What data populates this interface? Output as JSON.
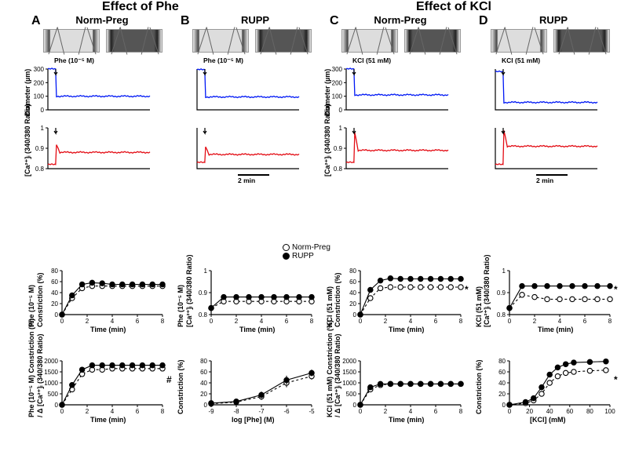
{
  "sections": {
    "left": "Effect of Phe",
    "right": "Effect of KCl"
  },
  "panels": {
    "A": "Norm-Preg",
    "B": "RUPP",
    "C": "Norm-Preg",
    "D": "RUPP"
  },
  "legend": {
    "open": "Norm-Preg",
    "filled": "RUPP"
  },
  "treatments": {
    "phe": "Phe (10⁻⁵ M)",
    "kcl": "KCl (51 mM)"
  },
  "scalebar": "2 min",
  "diameter": {
    "axis": {
      "ylabel": "Diameter (µm)",
      "ymin": 0,
      "ymax": 300,
      "ticks": [
        0,
        100,
        200,
        300
      ]
    },
    "traces": {
      "A": {
        "color": "#0018f5",
        "baseline": 300,
        "plateau": 100
      },
      "B": {
        "color": "#0018f5",
        "baseline": 295,
        "plateau": 95
      },
      "C": {
        "color": "#0018f5",
        "baseline": 300,
        "plateau": 110
      },
      "D": {
        "color": "#0018f5",
        "baseline": 280,
        "plateau": 55
      }
    }
  },
  "calcium_trace": {
    "axis": {
      "ylabel": "[Ca²⁺]ᵢ (340/380 Ratio)",
      "ymin": 0.8,
      "ymax": 1.0,
      "ticks": [
        0.8,
        0.9,
        1.0
      ]
    },
    "traces": {
      "A": {
        "color": "#e30b13",
        "baseline": 0.82,
        "plateau": 0.88,
        "peak": 0.92
      },
      "B": {
        "color": "#e30b13",
        "baseline": 0.83,
        "plateau": 0.87,
        "peak": 0.91
      },
      "C": {
        "color": "#e30b13",
        "baseline": 0.83,
        "plateau": 0.89,
        "peak": 0.98
      },
      "D": {
        "color": "#e30b13",
        "baseline": 0.82,
        "plateau": 0.91,
        "peak": 0.99
      }
    }
  },
  "timecourse": {
    "xaxis": {
      "label": "Time (min)",
      "min": 0,
      "max": 8,
      "ticks": [
        0,
        2,
        4,
        6,
        8
      ]
    },
    "constriction": {
      "ylabel_phe": "Phe (10⁻⁵ M)\nConstriction (%)",
      "ylabel_kcl": "KCl (51 mM)\nConstriction (%)",
      "ymin": 0,
      "ymax": 80,
      "yticks": [
        0,
        20,
        40,
        60,
        80
      ],
      "phe": {
        "norm": [
          0,
          30,
          48,
          52,
          52,
          52,
          52,
          52,
          52,
          52,
          52
        ],
        "rupp": [
          0,
          35,
          55,
          58,
          57,
          55,
          55,
          55,
          55,
          55,
          55
        ]
      },
      "kcl": {
        "norm": [
          0,
          30,
          48,
          50,
          50,
          50,
          50,
          50,
          50,
          50,
          50
        ],
        "rupp": [
          0,
          45,
          62,
          66,
          65,
          65,
          65,
          65,
          65,
          65,
          65
        ],
        "sig": "*"
      }
    },
    "ca": {
      "ylabel_phe": "Phe (10⁻⁵ M)\n[Ca²⁺]ᵢ (340/380 Ratio)",
      "ylabel_kcl": "KCl (51 mM)\n[Ca²⁺]ᵢ (340/380 Ratio)",
      "ymin": 0.8,
      "ymax": 1.0,
      "yticks": [
        0.8,
        0.9,
        1.0
      ],
      "phe": {
        "norm": [
          0.83,
          0.86,
          0.86,
          0.86,
          0.86,
          0.86,
          0.86,
          0.86,
          0.86
        ],
        "rupp": [
          0.83,
          0.88,
          0.88,
          0.88,
          0.88,
          0.88,
          0.88,
          0.88,
          0.88
        ]
      },
      "kcl": {
        "norm": [
          0.83,
          0.89,
          0.88,
          0.87,
          0.87,
          0.87,
          0.87,
          0.87,
          0.87
        ],
        "rupp": [
          0.83,
          0.93,
          0.93,
          0.93,
          0.93,
          0.93,
          0.93,
          0.93,
          0.93
        ],
        "sig": "*"
      }
    },
    "ratio": {
      "ylabel_phe": "Phe (10⁻⁵ M) Constriction (%)\n/ Δ [Ca²⁺]ᵢ (340/380 Ratio)",
      "ylabel_kcl": "KCl (51 mM) Constriction (%)\n/ Δ [Ca²⁺]ᵢ (340/380 Ratio)",
      "ymin": 0,
      "ymax": 2000,
      "yticks": [
        0,
        500,
        1000,
        1500,
        2000
      ],
      "phe": {
        "norm": [
          0,
          700,
          1400,
          1600,
          1600,
          1650,
          1650,
          1650,
          1650,
          1650,
          1650
        ],
        "rupp": [
          0,
          900,
          1600,
          1800,
          1800,
          1800,
          1800,
          1800,
          1800,
          1800,
          1800
        ],
        "sig": "#"
      },
      "kcl": {
        "norm": [
          0,
          700,
          900,
          950,
          950,
          950,
          950,
          950,
          950,
          950,
          950
        ],
        "rupp": [
          0,
          800,
          950,
          950,
          950,
          950,
          950,
          950,
          950,
          950,
          950
        ]
      }
    }
  },
  "dose_response": {
    "phe": {
      "xlabel": "log [Phe] (M)",
      "xmin": -9,
      "xmax": -5,
      "xticks": [
        -9,
        -8,
        -7,
        -6,
        -5
      ],
      "ylabel": "Constriction (%)",
      "ymin": 0,
      "ymax": 80,
      "yticks": [
        0,
        20,
        40,
        60,
        80
      ],
      "norm": {
        "x": [
          -9,
          -8,
          -7,
          -6,
          -5
        ],
        "y": [
          2,
          5,
          15,
          40,
          52
        ],
        "err": [
          2,
          3,
          6,
          8,
          6
        ]
      },
      "rupp": {
        "x": [
          -9,
          -8,
          -7,
          -6,
          -5
        ],
        "y": [
          3,
          6,
          18,
          45,
          58
        ],
        "err": [
          2,
          3,
          6,
          8,
          6
        ]
      }
    },
    "kcl": {
      "xlabel": "[KCl] (mM)",
      "xmin": 0,
      "xmax": 100,
      "xticks": [
        0,
        20,
        40,
        60,
        80,
        100
      ],
      "ylabel": "Constriction (%)",
      "ymin": 0,
      "ymax": 80,
      "yticks": [
        0,
        20,
        40,
        60,
        80
      ],
      "norm": {
        "x": [
          0,
          16,
          24,
          32,
          40,
          48,
          56,
          64,
          80,
          96
        ],
        "y": [
          0,
          3,
          8,
          20,
          40,
          52,
          58,
          60,
          62,
          63
        ],
        "err": [
          2,
          2,
          3,
          5,
          5,
          5,
          4,
          4,
          3,
          3
        ]
      },
      "rupp": {
        "x": [
          0,
          16,
          24,
          32,
          40,
          48,
          56,
          64,
          80,
          96
        ],
        "y": [
          0,
          5,
          12,
          32,
          55,
          68,
          74,
          77,
          78,
          79
        ],
        "err": [
          2,
          2,
          3,
          5,
          5,
          5,
          4,
          4,
          3,
          3
        ]
      },
      "sig": "*"
    }
  },
  "style": {
    "font_family": "Arial",
    "bg": "#ffffff",
    "blue": "#0018f5",
    "red": "#e30b13",
    "black": "#000000",
    "open_marker_fill": "#ffffff"
  }
}
